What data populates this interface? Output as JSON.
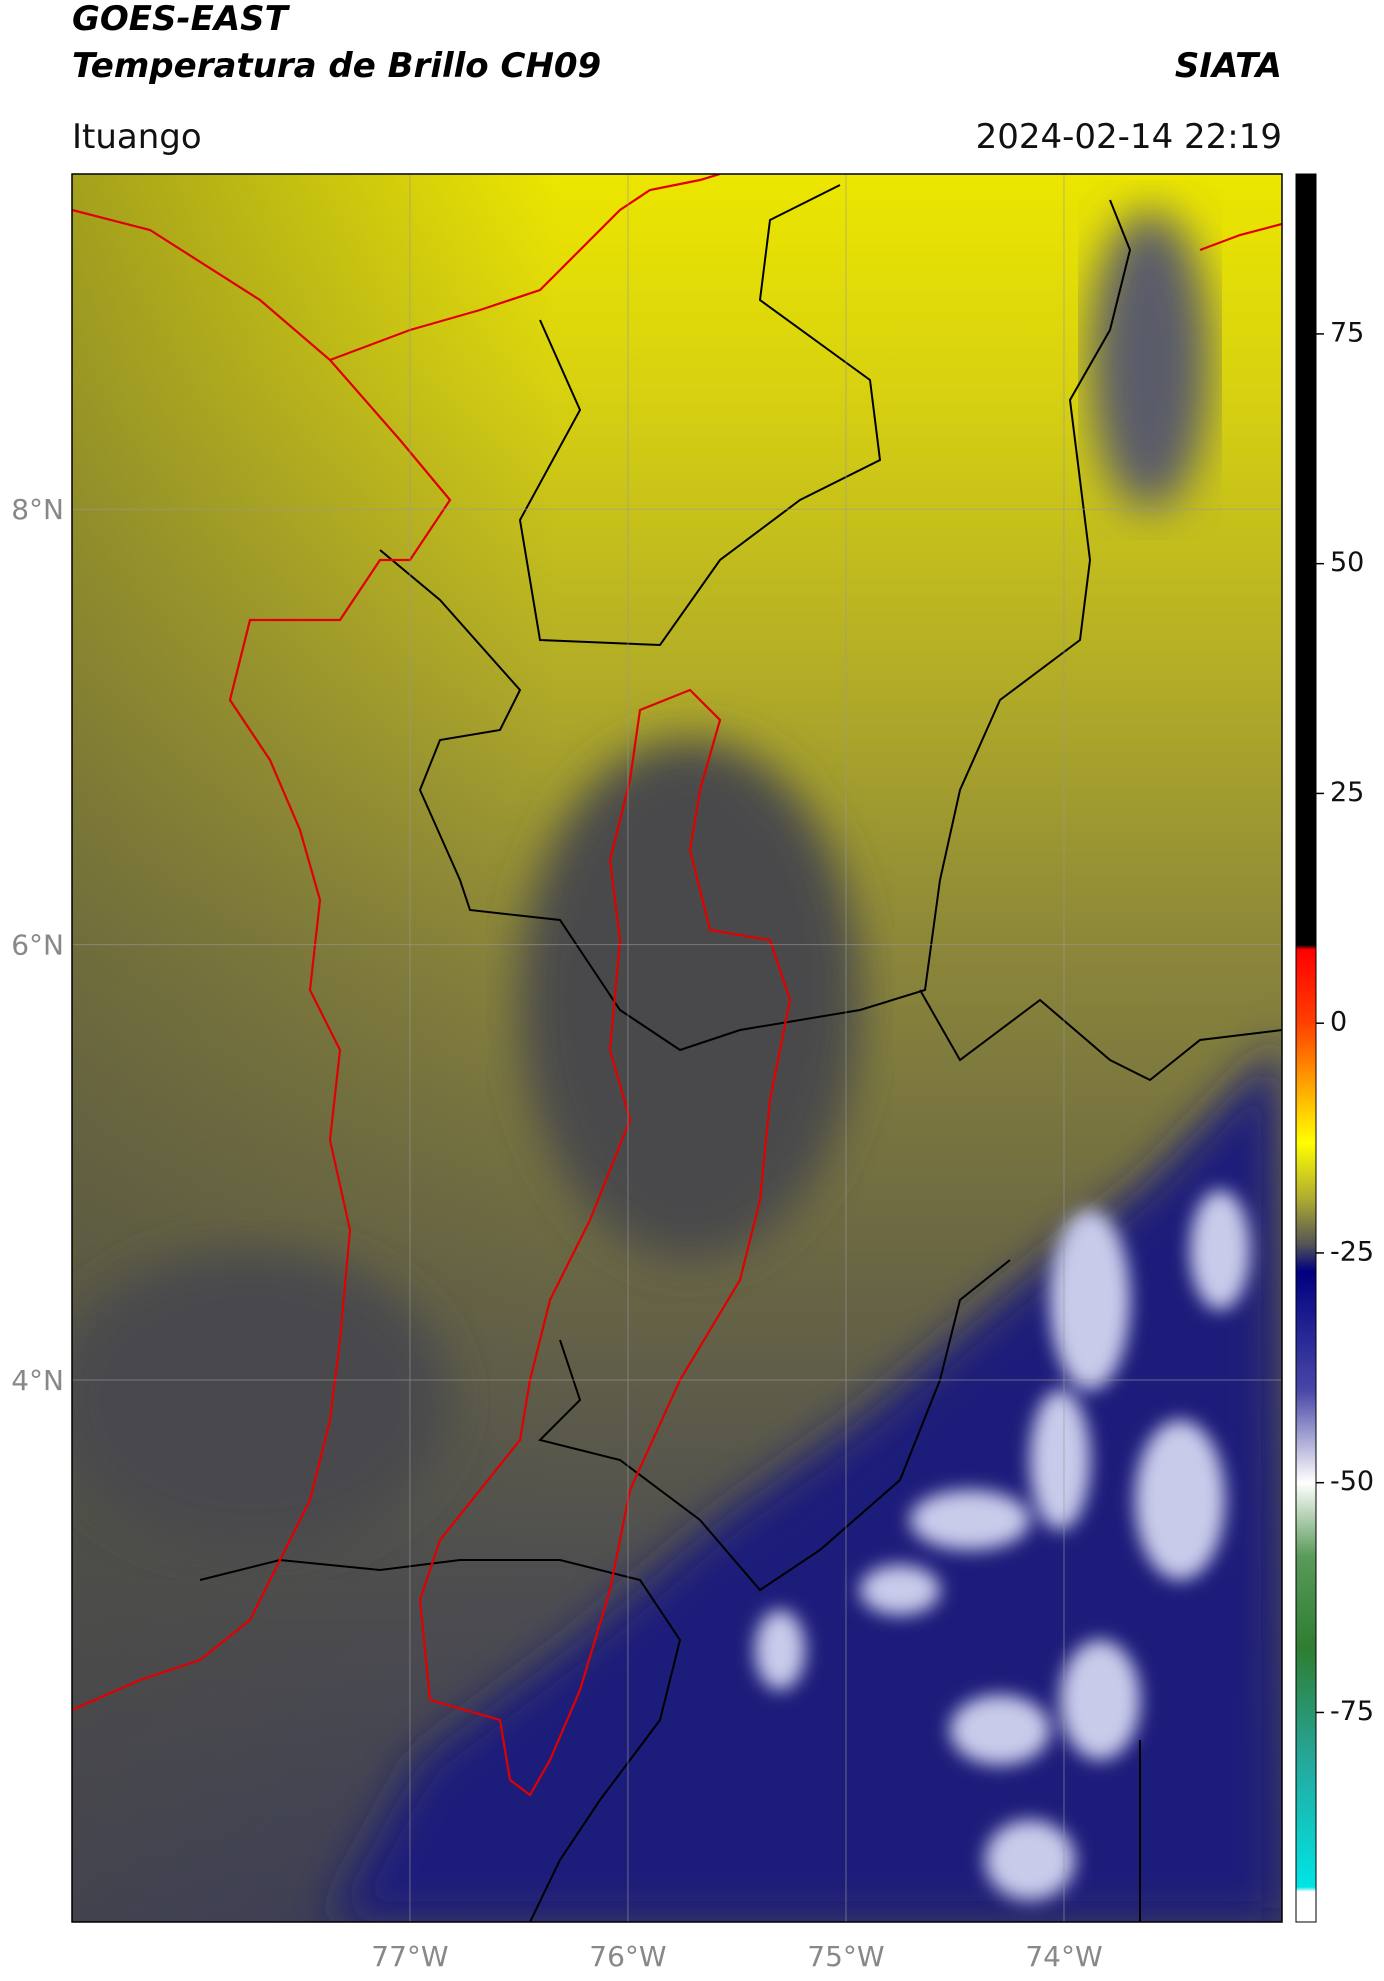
{
  "header": {
    "title_line1": "GOES-EAST",
    "title_line2": "Temperatura de Brillo CH09",
    "source": "SIATA",
    "region": "Ituango",
    "timestamp": "2024-02-14 22:19"
  },
  "map": {
    "xlim": [
      -78.55,
      -73.0
    ],
    "ylim": [
      1.51,
      9.54
    ],
    "grid": true,
    "xticks": [
      {
        "value": -77,
        "label": "77°W"
      },
      {
        "value": -76,
        "label": "76°W"
      },
      {
        "value": -75,
        "label": "75°W"
      },
      {
        "value": -74,
        "label": "74°W"
      }
    ],
    "yticks": [
      {
        "value": 8,
        "label": "8°N"
      },
      {
        "value": 6,
        "label": "6°N"
      },
      {
        "value": 4,
        "label": "4°N"
      }
    ]
  },
  "colorbar": {
    "clim": [
      -97.8,
      92.4
    ],
    "ticks": [
      75,
      50,
      25,
      0,
      -25,
      -50,
      -75
    ],
    "stops": [
      {
        "value": 92.4,
        "color": "#000000"
      },
      {
        "value": 8.5,
        "color": "#000000"
      },
      {
        "value": 8,
        "color": "#ff0000"
      },
      {
        "value": 0,
        "color": "#ff4000"
      },
      {
        "value": -6,
        "color": "#ff9900"
      },
      {
        "value": -13,
        "color": "#ffff00"
      },
      {
        "value": -19,
        "color": "#b0ad30"
      },
      {
        "value": -24,
        "color": "#555555"
      },
      {
        "value": -27,
        "color": "#000080"
      },
      {
        "value": -40,
        "color": "#4848a8"
      },
      {
        "value": -50,
        "color": "#ffffff"
      },
      {
        "value": -58,
        "color": "#5a9a5a"
      },
      {
        "value": -68,
        "color": "#2e7d32"
      },
      {
        "value": -80,
        "color": "#26a69a"
      },
      {
        "value": -94,
        "color": "#00e5e5"
      },
      {
        "value": -94.5,
        "color": "#ffffff"
      },
      {
        "value": -97.8,
        "color": "#ffffff"
      }
    ]
  }
}
